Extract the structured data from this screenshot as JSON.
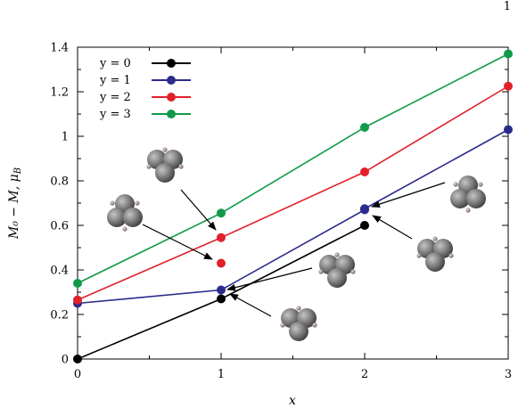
{
  "page_number": "1",
  "chart_data": {
    "type": "line",
    "title": "",
    "xlabel": "x",
    "ylabel": "M₀ − M, μ",
    "ylabel_subscript": "B",
    "xlim": [
      0,
      3
    ],
    "ylim": [
      0,
      1.4
    ],
    "xticks": [
      "0",
      "1",
      "2",
      "3"
    ],
    "yticks": [
      "0",
      "0.2",
      "0.4",
      "0.6",
      "0.8",
      "1",
      "1.2",
      "1.4"
    ],
    "grid": false,
    "legend_position": "top-left",
    "series": [
      {
        "name": "y = 0",
        "color": "#000000",
        "x": [
          0,
          1,
          2
        ],
        "y": [
          0.0,
          0.27,
          0.6
        ]
      },
      {
        "name": "y = 1",
        "color": "#2b2b8c",
        "x": [
          0,
          1,
          2,
          2,
          3
        ],
        "y": [
          0.25,
          0.31,
          0.67,
          0.675,
          1.03
        ]
      },
      {
        "name": "y = 2",
        "color": "#e0202a",
        "x": [
          0,
          1,
          2,
          3
        ],
        "y": [
          0.265,
          0.545,
          0.84,
          1.225
        ],
        "extra_points": [
          {
            "x": 1,
            "y": 0.43
          }
        ]
      },
      {
        "name": "y = 3",
        "color": "#119a4a",
        "x": [
          0,
          1,
          2,
          3
        ],
        "y": [
          0.34,
          0.655,
          1.04,
          1.37
        ]
      }
    ],
    "annotations": [
      {
        "name": "cluster-annotation-1",
        "icon": "tetramer-cluster-icon",
        "target": {
          "x": 1,
          "y": 0.545
        }
      },
      {
        "name": "cluster-annotation-2",
        "icon": "tetramer-cluster-icon",
        "target": {
          "x": 1,
          "y": 0.43
        }
      },
      {
        "name": "cluster-annotation-3",
        "icon": "tetramer-cluster-icon",
        "target": {
          "x": 1,
          "y": 0.31
        }
      },
      {
        "name": "cluster-annotation-4",
        "icon": "tetramer-cluster-icon",
        "target": {
          "x": 1,
          "y": 0.27
        }
      },
      {
        "name": "cluster-annotation-5",
        "icon": "tetramer-cluster-icon",
        "target": {
          "x": 2,
          "y": 0.675
        }
      },
      {
        "name": "cluster-annotation-6",
        "icon": "tetramer-cluster-icon",
        "target": {
          "x": 2,
          "y": 0.665
        }
      }
    ]
  }
}
